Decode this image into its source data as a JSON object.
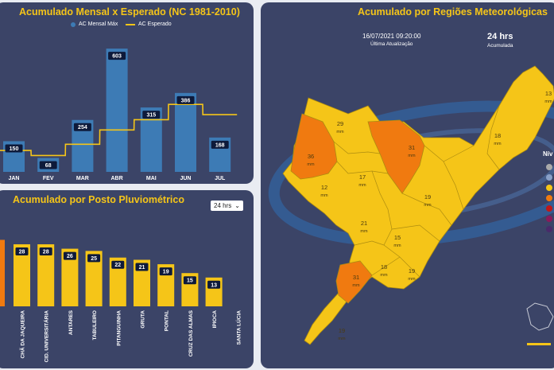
{
  "monthly_panel": {
    "title": "Acumulado Mensal x Esperado (NC 1981-2010)",
    "legend": [
      {
        "label": "AC Mensal Máx",
        "color": "#3d7bb5"
      },
      {
        "label": "AC Esperado",
        "color": "#f5c518"
      }
    ]
  },
  "posto_panel": {
    "title": "Acumulado por Posto Pluviométrico",
    "dropdown_value": "24 hrs"
  },
  "map_panel": {
    "title": "Acumulado por Regiões Meteorológicas",
    "datetime": "16/07/2021 09:20:00",
    "datetime_label": "Última Atualização",
    "period": "24 hrs",
    "period_label": "Acumulada",
    "legend_title": "Nív",
    "unit": "mm",
    "region_values": [
      {
        "value": "29"
      },
      {
        "value": "31"
      },
      {
        "value": "13"
      },
      {
        "value": "18"
      },
      {
        "value": "36"
      },
      {
        "value": "12"
      },
      {
        "value": "17"
      },
      {
        "value": "19"
      },
      {
        "value": "21"
      },
      {
        "value": "15"
      },
      {
        "value": "18"
      },
      {
        "value": "19"
      },
      {
        "value": "31"
      },
      {
        "value": "19"
      }
    ],
    "level_colors": [
      "#aaaaaa",
      "#8aa0c8",
      "#f5c518",
      "#f07a10",
      "#c01818",
      "#8a1a5a",
      "#4a2a6a"
    ]
  },
  "chart_data": [
    {
      "type": "bar",
      "title": "Acumulado Mensal x Esperado (NC 1981-2010)",
      "categories": [
        "JAN",
        "FEV",
        "MAR",
        "ABR",
        "MAI",
        "JUN",
        "JUL"
      ],
      "series": [
        {
          "name": "AC Mensal Máx",
          "values": [
            150,
            68,
            254,
            603,
            315,
            386,
            168
          ]
        },
        {
          "name": "AC Esperado",
          "type": "step-line",
          "values": [
            105,
            80,
            135,
            205,
            255,
            330,
            280
          ]
        }
      ],
      "ylim": [
        0,
        650
      ]
    },
    {
      "type": "bar",
      "title": "Acumulado por Posto Pluviométrico",
      "categories": [
        "CHÃ DA JAQUEIRA",
        "CID. UNIVERSITÁRIA",
        "ANTARES",
        "TABULEIRO",
        "PITANGUINHA",
        "GRUTA",
        "PONTAL",
        "CRUZ DAS ALMAS",
        "IPIOCA",
        "SANTA LÚCIA"
      ],
      "values": [
        28,
        28,
        26,
        25,
        22,
        21,
        19,
        15,
        13,
        0
      ],
      "ylim": [
        0,
        32
      ]
    }
  ]
}
